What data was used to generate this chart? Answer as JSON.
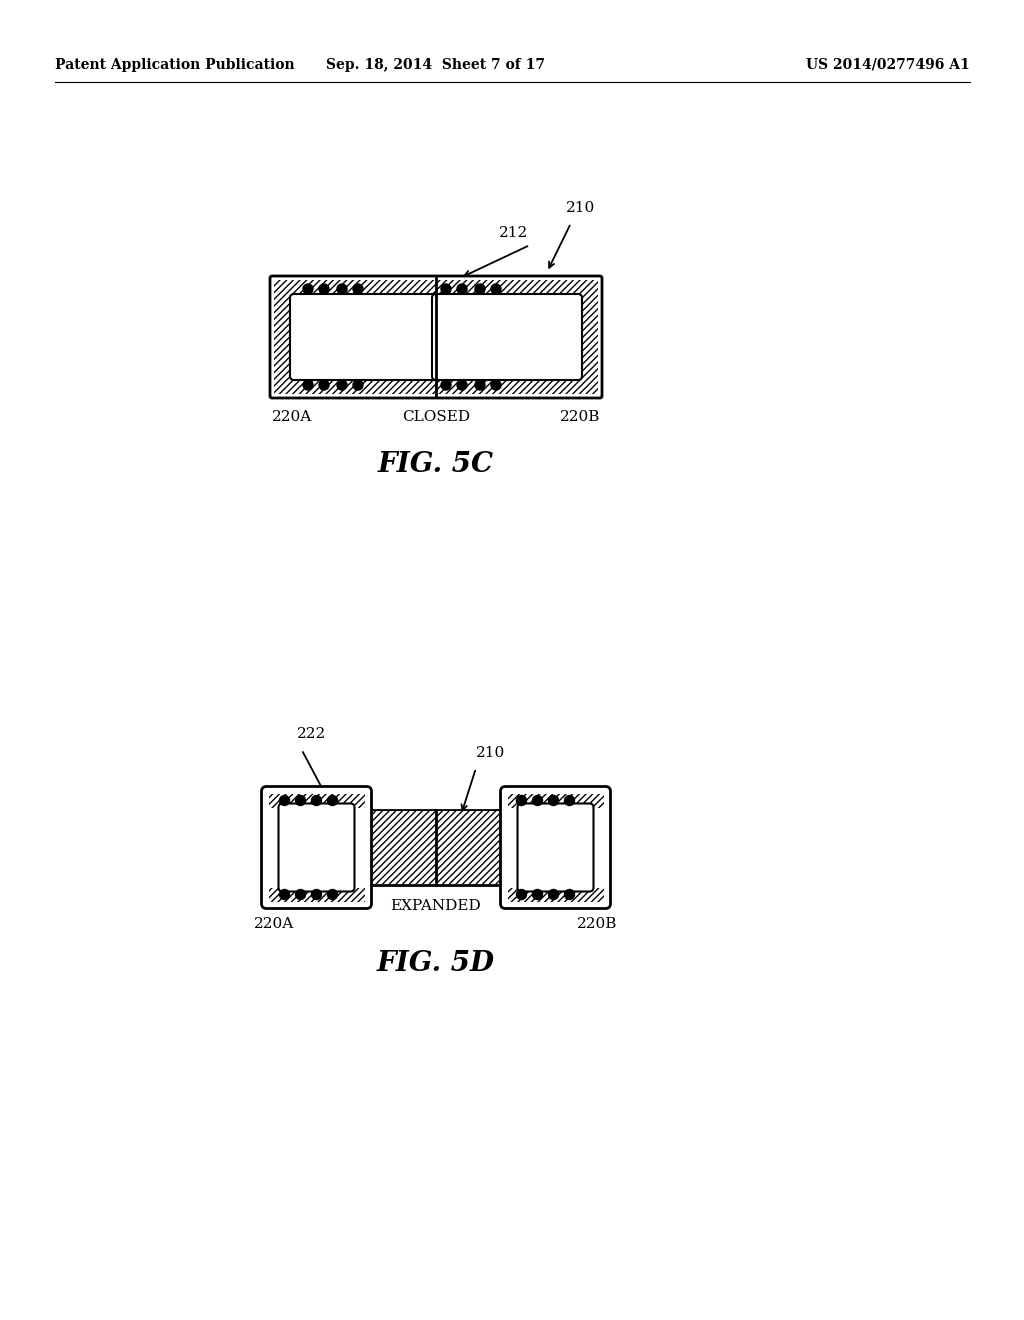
{
  "bg_color": "#ffffff",
  "header_left": "Patent Application Publication",
  "header_center": "Sep. 18, 2014  Sheet 7 of 17",
  "header_right": "US 2014/0277496 A1",
  "fig5c_label": "FIG. 5C",
  "fig5d_label": "FIG. 5D",
  "closed_label": "CLOSED",
  "expanded_label": "EXPANDED",
  "label_210_5c": "210",
  "label_212_5c": "212",
  "label_220a_5c": "220A",
  "label_220b_5c": "220B",
  "label_210_5d": "210",
  "label_222_5d": "222",
  "label_220a_5d": "220A",
  "label_220b_5d": "220B"
}
